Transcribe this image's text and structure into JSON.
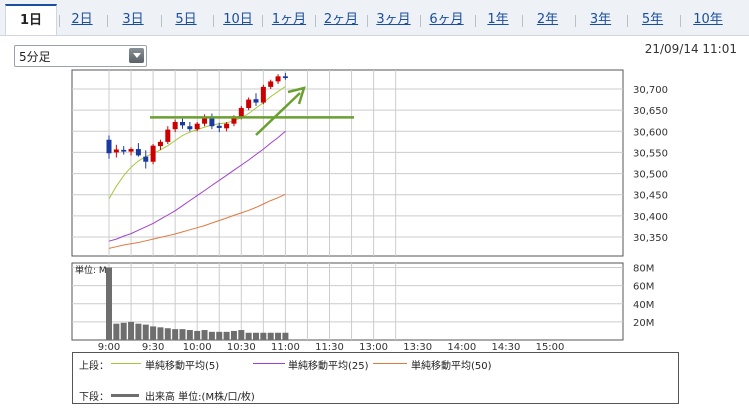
{
  "tabs": [
    "1日",
    "2日",
    "3日",
    "5日",
    "10日",
    "1ヶ月",
    "2ヶ月",
    "3ヶ月",
    "6ヶ月",
    "1年",
    "2年",
    "3年",
    "5年",
    "10年"
  ],
  "active_tab": "1日",
  "interval_select": {
    "selected": "5分足"
  },
  "timestamp": "21/09/14 11:01",
  "legend": {
    "upper_label": "上段：",
    "lower_label": "下段：",
    "ma5": "単純移動平均(5)",
    "ma25": "単純移動平均(25)",
    "ma50": "単純移動平均(50)",
    "volume": "出来高 単位:(M株/口/枚)"
  },
  "colors": {
    "up": "#cc0000",
    "down": "#1a3aa0",
    "ma5": "#a3c93a",
    "ma25": "#a040d0",
    "ma50": "#e07840",
    "annotation": "#6aa030",
    "volume": "#6e6e6e",
    "grid": "#cccccc"
  },
  "chart_data": [
    {
      "type": "candlestick",
      "x": [
        "9:00",
        "9:05",
        "9:10",
        "9:15",
        "9:20",
        "9:25",
        "9:30",
        "9:35",
        "9:40",
        "9:45",
        "9:50",
        "9:55",
        "10:00",
        "10:05",
        "10:10",
        "10:15",
        "10:20",
        "10:25",
        "10:30",
        "10:35",
        "10:40",
        "10:45",
        "10:50",
        "10:55",
        "11:00"
      ],
      "x_ticks": [
        "9:00",
        "9:30",
        "10:00",
        "10:30",
        "11:00",
        "11:30",
        "13:00",
        "13:30",
        "14:00",
        "14:30",
        "15:00"
      ],
      "y_ticks": [
        "30,350",
        "30,400",
        "30,450",
        "30,500",
        "30,550",
        "30,600",
        "30,650",
        "30,700"
      ],
      "ylim": [
        30305,
        30745
      ],
      "candles": [
        {
          "o": 30580,
          "h": 30590,
          "l": 30535,
          "c": 30548
        },
        {
          "o": 30550,
          "h": 30568,
          "l": 30538,
          "c": 30557
        },
        {
          "o": 30556,
          "h": 30565,
          "l": 30545,
          "c": 30552
        },
        {
          "o": 30552,
          "h": 30562,
          "l": 30543,
          "c": 30558
        },
        {
          "o": 30558,
          "h": 30572,
          "l": 30540,
          "c": 30543
        },
        {
          "o": 30540,
          "h": 30555,
          "l": 30512,
          "c": 30528
        },
        {
          "o": 30528,
          "h": 30570,
          "l": 30522,
          "c": 30566
        },
        {
          "o": 30565,
          "h": 30580,
          "l": 30556,
          "c": 30575
        },
        {
          "o": 30575,
          "h": 30612,
          "l": 30570,
          "c": 30604
        },
        {
          "o": 30605,
          "h": 30628,
          "l": 30598,
          "c": 30622
        },
        {
          "o": 30622,
          "h": 30630,
          "l": 30606,
          "c": 30614
        },
        {
          "o": 30612,
          "h": 30622,
          "l": 30600,
          "c": 30605
        },
        {
          "o": 30605,
          "h": 30622,
          "l": 30600,
          "c": 30618
        },
        {
          "o": 30618,
          "h": 30640,
          "l": 30612,
          "c": 30635
        },
        {
          "o": 30635,
          "h": 30642,
          "l": 30605,
          "c": 30612
        },
        {
          "o": 30613,
          "h": 30620,
          "l": 30598,
          "c": 30608
        },
        {
          "o": 30607,
          "h": 30622,
          "l": 30600,
          "c": 30618
        },
        {
          "o": 30618,
          "h": 30638,
          "l": 30612,
          "c": 30632
        },
        {
          "o": 30632,
          "h": 30660,
          "l": 30628,
          "c": 30655
        },
        {
          "o": 30655,
          "h": 30680,
          "l": 30650,
          "c": 30675
        },
        {
          "o": 30676,
          "h": 30690,
          "l": 30660,
          "c": 30668
        },
        {
          "o": 30668,
          "h": 30710,
          "l": 30664,
          "c": 30705
        },
        {
          "o": 30705,
          "h": 30722,
          "l": 30700,
          "c": 30718
        },
        {
          "o": 30718,
          "h": 30735,
          "l": 30712,
          "c": 30730
        },
        {
          "o": 30730,
          "h": 30738,
          "l": 30722,
          "c": 30726
        }
      ],
      "ma5": [
        30440,
        30470,
        30495,
        30515,
        30530,
        30540,
        30548,
        30556,
        30566,
        30578,
        30590,
        30598,
        30604,
        30610,
        30615,
        30618,
        30620,
        30625,
        30632,
        30642,
        30655,
        30668,
        30682,
        30694,
        30706
      ],
      "ma25": [
        30340,
        30345,
        30352,
        30358,
        30366,
        30374,
        30382,
        30392,
        30402,
        30412,
        30424,
        30436,
        30448,
        30460,
        30472,
        30484,
        30496,
        30508,
        30520,
        30532,
        30545,
        30558,
        30572,
        30585,
        30600
      ],
      "ma50": [
        30323,
        30327,
        30331,
        30334,
        30337,
        30341,
        30345,
        30349,
        30353,
        30357,
        30362,
        30367,
        30372,
        30377,
        30383,
        30389,
        30395,
        30401,
        30407,
        30413,
        30420,
        30428,
        30436,
        30443,
        30451
      ],
      "annotation_hline": 30633
    },
    {
      "type": "bar",
      "title": "単位: M",
      "y_ticks": [
        "20M",
        "40M",
        "60M",
        "80M"
      ],
      "ylim": [
        0,
        85
      ],
      "values": [
        80,
        18,
        19,
        20,
        18,
        17,
        15,
        14,
        13,
        12,
        12,
        11,
        10,
        11,
        9,
        9,
        9,
        10,
        11,
        8,
        8,
        8,
        8,
        8,
        8
      ]
    }
  ]
}
